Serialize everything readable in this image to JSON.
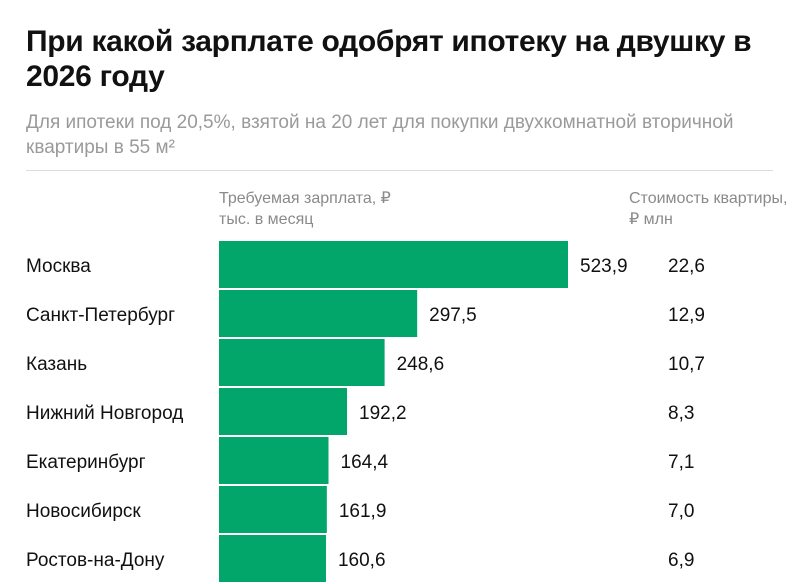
{
  "header": {
    "title": "При какой зарплате одобрят ипотеку на двушку в 2026 году",
    "subtitle": "Для ипотеки под 20,5%, взятой на 20 лет для покупки двухкомнатной вторичной квартиры в 55 м²"
  },
  "chart_data": {
    "type": "bar",
    "orientation": "horizontal",
    "title": "При какой зарплате одобрят ипотеку на двушку в 2026 году",
    "subtitle": "Для ипотеки под 20,5%, взятой на 20 лет для покупки двухкомнатной вторичной квартиры в 55 м²",
    "value_header": "Требуемая зарплата, ₽ тыс. в месяц",
    "extra_column_header": "Стоимость квартиры, ₽ млн",
    "categories": [
      "Москва",
      "Санкт-Петербург",
      "Казань",
      "Нижний Новгород",
      "Екатеринбург",
      "Новосибирск",
      "Ростов-на-Дону"
    ],
    "values": [
      523.9,
      297.5,
      248.6,
      192.2,
      164.4,
      161.9,
      160.6
    ],
    "value_labels": [
      "523,9",
      "297,5",
      "248,6",
      "192,2",
      "164,4",
      "161,9",
      "160,6"
    ],
    "extra_column": [
      "22,6",
      "12,9",
      "10,7",
      "8,3",
      "7,1",
      "7,0",
      "6,9"
    ],
    "bar_color": "#03a66a",
    "grid": false
  }
}
